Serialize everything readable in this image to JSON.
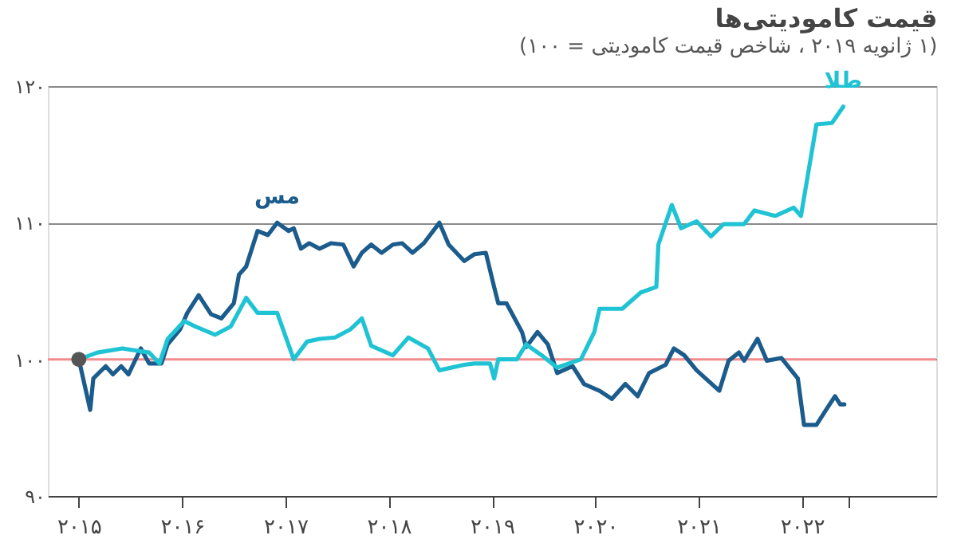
{
  "chart_data": {
    "type": "line",
    "title": "قیمت کامودیتی‌ها",
    "subtitle": "(۱ ژانویه ۲۰۱۹ ، شاخص قیمت کامودیتی = ۱۰۰)",
    "xlim": [
      2014.7,
      2023.3
    ],
    "ylim": [
      90,
      120
    ],
    "xticks": [
      {
        "value": 2015,
        "label": "۲۰۱۵"
      },
      {
        "value": 2016,
        "label": "۲۰۱۶"
      },
      {
        "value": 2017,
        "label": "۲۰۱۷"
      },
      {
        "value": 2018,
        "label": "۲۰۱۸"
      },
      {
        "value": 2019,
        "label": "۲۰۱۹"
      },
      {
        "value": 2020,
        "label": "۲۰۲۰"
      },
      {
        "value": 2021,
        "label": "۲۰۲۱"
      },
      {
        "value": 2022,
        "label": "۲۰۲۲"
      },
      {
        "value": 2022.45,
        "label": null
      }
    ],
    "yticks": [
      {
        "value": 90,
        "label": "۹۰"
      },
      {
        "value": 100,
        "label": "۱۰۰"
      },
      {
        "value": 110,
        "label": "۱۱۰"
      },
      {
        "value": 120,
        "label": "۱۲۰"
      }
    ],
    "grid": "y",
    "line_style": "solid",
    "ref_lines": [
      {
        "axis": "y",
        "value": 100,
        "color": "#f28b8b"
      }
    ],
    "series": [
      {
        "name": "مس",
        "color": "#1b5c8c",
        "x": [
          2015.0,
          2015.11,
          2015.14,
          2015.26,
          2015.33,
          2015.41,
          2015.48,
          2015.6,
          2015.68,
          2015.8,
          2015.86,
          2015.98,
          2016.05,
          2016.16,
          2016.28,
          2016.38,
          2016.5,
          2016.55,
          2016.62,
          2016.73,
          2016.83,
          2016.92,
          2017.03,
          2017.08,
          2017.15,
          2017.23,
          2017.33,
          2017.44,
          2017.56,
          2017.66,
          2017.74,
          2017.83,
          2017.93,
          2018.04,
          2018.13,
          2018.23,
          2018.34,
          2018.49,
          2018.58,
          2018.73,
          2018.83,
          2018.94,
          2019.02,
          2019.06,
          2019.14,
          2019.29,
          2019.33,
          2019.44,
          2019.54,
          2019.63,
          2019.78,
          2019.89,
          2020.04,
          2020.16,
          2020.29,
          2020.41,
          2020.52,
          2020.68,
          2020.76,
          2020.86,
          2020.98,
          2021.2,
          2021.29,
          2021.39,
          2021.44,
          2021.57,
          2021.66,
          2021.8,
          2021.96,
          2022.02,
          2022.14,
          2022.25,
          2022.32,
          2022.37,
          2022.41
        ],
        "values": [
          100.0,
          96.3,
          98.6,
          99.5,
          98.9,
          99.5,
          98.9,
          100.8,
          99.7,
          99.7,
          101.1,
          102.2,
          103.4,
          104.7,
          103.3,
          103.0,
          104.1,
          106.2,
          106.8,
          109.4,
          109.1,
          110.0,
          109.4,
          109.6,
          108.1,
          108.5,
          108.1,
          108.5,
          108.4,
          106.8,
          107.8,
          108.4,
          107.8,
          108.4,
          108.5,
          107.8,
          108.5,
          110.0,
          108.4,
          107.2,
          107.7,
          107.8,
          105.3,
          104.1,
          104.1,
          102.0,
          100.9,
          102.0,
          101.1,
          99.0,
          99.5,
          98.2,
          97.7,
          97.1,
          98.2,
          97.3,
          99.0,
          99.6,
          100.8,
          100.3,
          99.2,
          97.7,
          99.9,
          100.5,
          99.9,
          101.5,
          99.9,
          100.1,
          98.6,
          95.2,
          95.2,
          96.5,
          97.3,
          96.7,
          96.7
        ]
      },
      {
        "name": "طلا",
        "color": "#1fc3d3",
        "x": [
          2015.0,
          2015.18,
          2015.42,
          2015.68,
          2015.78,
          2015.86,
          2016.02,
          2016.13,
          2016.32,
          2016.47,
          2016.62,
          2016.73,
          2016.92,
          2017.08,
          2017.21,
          2017.33,
          2017.48,
          2017.63,
          2017.74,
          2017.83,
          2018.04,
          2018.19,
          2018.38,
          2018.49,
          2018.73,
          2018.83,
          2018.98,
          2019.02,
          2019.06,
          2019.24,
          2019.33,
          2019.48,
          2019.63,
          2019.86,
          2019.99,
          2020.04,
          2020.26,
          2020.44,
          2020.59,
          2020.61,
          2020.74,
          2020.83,
          2020.98,
          2021.12,
          2021.24,
          2021.44,
          2021.54,
          2021.74,
          2021.92,
          2021.99,
          2022.14,
          2022.29,
          2022.4
        ],
        "values": [
          100.0,
          100.5,
          100.8,
          100.5,
          99.7,
          101.5,
          102.8,
          102.4,
          101.8,
          102.4,
          104.5,
          103.4,
          103.4,
          100.0,
          101.3,
          101.5,
          101.6,
          102.2,
          103.0,
          101.0,
          100.3,
          101.6,
          100.8,
          99.2,
          99.6,
          99.7,
          99.7,
          98.6,
          100.0,
          100.0,
          101.1,
          100.3,
          99.4,
          100.0,
          102.0,
          103.7,
          103.7,
          104.9,
          105.3,
          108.4,
          111.3,
          109.6,
          110.1,
          109.0,
          109.9,
          109.9,
          110.9,
          110.5,
          111.1,
          110.5,
          117.2,
          117.3,
          118.5
        ]
      },
      {
        "type": "scatter",
        "color": "#555555",
        "x": [
          2015
        ],
        "values": [
          100
        ]
      }
    ]
  }
}
